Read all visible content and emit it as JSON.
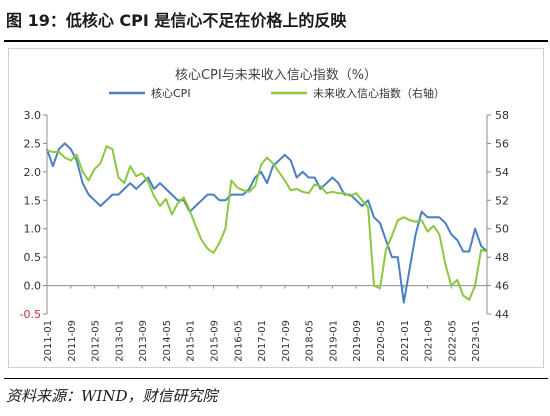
{
  "figure": {
    "title": "图 19：低核心 CPI 是信心不足在价格上的反映",
    "source": "资料来源：WIND，财信研究院"
  },
  "chart_data": {
    "type": "line",
    "title": "核心CPI与未来收入信心指数（%）",
    "legend_placement": "top",
    "grid": false,
    "x_tick_labels": [
      "2011-01",
      "2011-09",
      "2012-05",
      "2013-01",
      "2013-09",
      "2014-05",
      "2015-01",
      "2015-09",
      "2016-05",
      "2017-01",
      "2017-09",
      "2018-05",
      "2019-01",
      "2019-09",
      "2020-05",
      "2021-01",
      "2021-09",
      "2022-05",
      "2023-01"
    ],
    "left_axis": {
      "ylim": [
        -0.5,
        3.0
      ],
      "ticks": [
        -0.5,
        0.0,
        0.5,
        1.0,
        1.5,
        2.0,
        2.5,
        3.0
      ],
      "tick_labels": [
        "-0.5",
        "0.0",
        "0.5",
        "1.0",
        "1.5",
        "2.0",
        "2.5",
        "3.0"
      ]
    },
    "right_axis": {
      "ylim": [
        44,
        58
      ],
      "ticks": [
        44,
        46,
        48,
        50,
        52,
        54,
        56,
        58
      ],
      "tick_labels": [
        "44",
        "46",
        "48",
        "50",
        "52",
        "54",
        "56",
        "58"
      ]
    },
    "series": [
      {
        "name": "核心CPI",
        "axis": "left",
        "color": "#4a7fc1",
        "points": [
          [
            "2011-01",
            2.4
          ],
          [
            "2011-03",
            2.1
          ],
          [
            "2011-05",
            2.4
          ],
          [
            "2011-07",
            2.5
          ],
          [
            "2011-09",
            2.4
          ],
          [
            "2011-11",
            2.2
          ],
          [
            "2012-01",
            1.8
          ],
          [
            "2012-03",
            1.6
          ],
          [
            "2012-05",
            1.5
          ],
          [
            "2012-07",
            1.4
          ],
          [
            "2012-09",
            1.5
          ],
          [
            "2012-11",
            1.6
          ],
          [
            "2013-01",
            1.6
          ],
          [
            "2013-03",
            1.7
          ],
          [
            "2013-05",
            1.8
          ],
          [
            "2013-07",
            1.7
          ],
          [
            "2013-09",
            1.8
          ],
          [
            "2013-11",
            1.9
          ],
          [
            "2014-01",
            1.7
          ],
          [
            "2014-03",
            1.8
          ],
          [
            "2014-05",
            1.7
          ],
          [
            "2014-07",
            1.6
          ],
          [
            "2014-09",
            1.5
          ],
          [
            "2014-11",
            1.5
          ],
          [
            "2015-01",
            1.3
          ],
          [
            "2015-03",
            1.4
          ],
          [
            "2015-05",
            1.5
          ],
          [
            "2015-07",
            1.6
          ],
          [
            "2015-09",
            1.6
          ],
          [
            "2015-11",
            1.5
          ],
          [
            "2016-01",
            1.5
          ],
          [
            "2016-03",
            1.6
          ],
          [
            "2016-05",
            1.6
          ],
          [
            "2016-07",
            1.6
          ],
          [
            "2016-09",
            1.7
          ],
          [
            "2016-11",
            1.9
          ],
          [
            "2017-01",
            2.0
          ],
          [
            "2017-03",
            1.8
          ],
          [
            "2017-05",
            2.1
          ],
          [
            "2017-07",
            2.2
          ],
          [
            "2017-09",
            2.3
          ],
          [
            "2017-11",
            2.2
          ],
          [
            "2018-01",
            1.9
          ],
          [
            "2018-03",
            2.0
          ],
          [
            "2018-05",
            1.9
          ],
          [
            "2018-07",
            1.9
          ],
          [
            "2018-09",
            1.7
          ],
          [
            "2018-11",
            1.8
          ],
          [
            "2019-01",
            1.9
          ],
          [
            "2019-03",
            1.8
          ],
          [
            "2019-05",
            1.6
          ],
          [
            "2019-07",
            1.6
          ],
          [
            "2019-09",
            1.5
          ],
          [
            "2019-11",
            1.4
          ],
          [
            "2020-01",
            1.5
          ],
          [
            "2020-03",
            1.2
          ],
          [
            "2020-05",
            1.1
          ],
          [
            "2020-07",
            0.8
          ],
          [
            "2020-09",
            0.5
          ],
          [
            "2020-11",
            0.5
          ],
          [
            "2021-01",
            -0.3
          ],
          [
            "2021-03",
            0.3
          ],
          [
            "2021-05",
            0.9
          ],
          [
            "2021-07",
            1.3
          ],
          [
            "2021-09",
            1.2
          ],
          [
            "2021-11",
            1.2
          ],
          [
            "2022-01",
            1.2
          ],
          [
            "2022-03",
            1.1
          ],
          [
            "2022-05",
            0.9
          ],
          [
            "2022-07",
            0.8
          ],
          [
            "2022-09",
            0.6
          ],
          [
            "2022-11",
            0.6
          ],
          [
            "2023-01",
            1.0
          ],
          [
            "2023-03",
            0.7
          ],
          [
            "2023-05",
            0.6
          ]
        ]
      },
      {
        "name": "未来收入信心指数（右轴）",
        "axis": "right",
        "color": "#8dc63f",
        "points": [
          [
            "2011-01",
            55.5
          ],
          [
            "2011-03",
            55.4
          ],
          [
            "2011-05",
            55.4
          ],
          [
            "2011-07",
            55.0
          ],
          [
            "2011-09",
            54.8
          ],
          [
            "2011-11",
            55.2
          ],
          [
            "2012-01",
            54.0
          ],
          [
            "2012-03",
            53.4
          ],
          [
            "2012-05",
            54.2
          ],
          [
            "2012-07",
            54.6
          ],
          [
            "2012-09",
            55.8
          ],
          [
            "2012-11",
            55.6
          ],
          [
            "2013-01",
            53.6
          ],
          [
            "2013-03",
            53.2
          ],
          [
            "2013-05",
            54.4
          ],
          [
            "2013-07",
            53.7
          ],
          [
            "2013-09",
            53.9
          ],
          [
            "2013-11",
            53.3
          ],
          [
            "2014-01",
            52.3
          ],
          [
            "2014-03",
            51.6
          ],
          [
            "2014-05",
            52.1
          ],
          [
            "2014-07",
            51.0
          ],
          [
            "2014-09",
            51.8
          ],
          [
            "2014-11",
            52.2
          ],
          [
            "2015-01",
            51.3
          ],
          [
            "2015-03",
            50.2
          ],
          [
            "2015-05",
            49.2
          ],
          [
            "2015-07",
            48.6
          ],
          [
            "2015-09",
            48.3
          ],
          [
            "2015-11",
            49.0
          ],
          [
            "2016-01",
            50.0
          ],
          [
            "2016-03",
            53.4
          ],
          [
            "2016-05",
            52.9
          ],
          [
            "2016-07",
            52.7
          ],
          [
            "2016-09",
            52.6
          ],
          [
            "2016-11",
            53.0
          ],
          [
            "2017-01",
            54.5
          ],
          [
            "2017-03",
            55.0
          ],
          [
            "2017-05",
            54.6
          ],
          [
            "2017-07",
            54.0
          ],
          [
            "2017-09",
            53.4
          ],
          [
            "2017-11",
            52.7
          ],
          [
            "2018-01",
            52.8
          ],
          [
            "2018-03",
            52.6
          ],
          [
            "2018-05",
            52.5
          ],
          [
            "2018-07",
            53.1
          ],
          [
            "2018-09",
            53.0
          ],
          [
            "2018-11",
            52.5
          ],
          [
            "2019-01",
            52.6
          ],
          [
            "2019-03",
            52.5
          ],
          [
            "2019-05",
            52.5
          ],
          [
            "2019-07",
            52.3
          ],
          [
            "2019-09",
            52.5
          ],
          [
            "2019-11",
            52.0
          ],
          [
            "2020-01",
            51.5
          ],
          [
            "2020-03",
            46.0
          ],
          [
            "2020-05",
            45.8
          ],
          [
            "2020-07",
            48.5
          ],
          [
            "2020-09",
            49.5
          ],
          [
            "2020-11",
            50.6
          ],
          [
            "2021-01",
            50.8
          ],
          [
            "2021-03",
            50.6
          ],
          [
            "2021-05",
            50.5
          ],
          [
            "2021-07",
            50.6
          ],
          [
            "2021-09",
            49.8
          ],
          [
            "2021-11",
            50.2
          ],
          [
            "2022-01",
            49.6
          ],
          [
            "2022-03",
            47.5
          ],
          [
            "2022-05",
            46.0
          ],
          [
            "2022-07",
            46.4
          ],
          [
            "2022-09",
            45.3
          ],
          [
            "2022-11",
            45.0
          ],
          [
            "2023-01",
            46.0
          ],
          [
            "2023-03",
            48.5
          ],
          [
            "2023-05",
            48.4
          ]
        ]
      }
    ]
  }
}
